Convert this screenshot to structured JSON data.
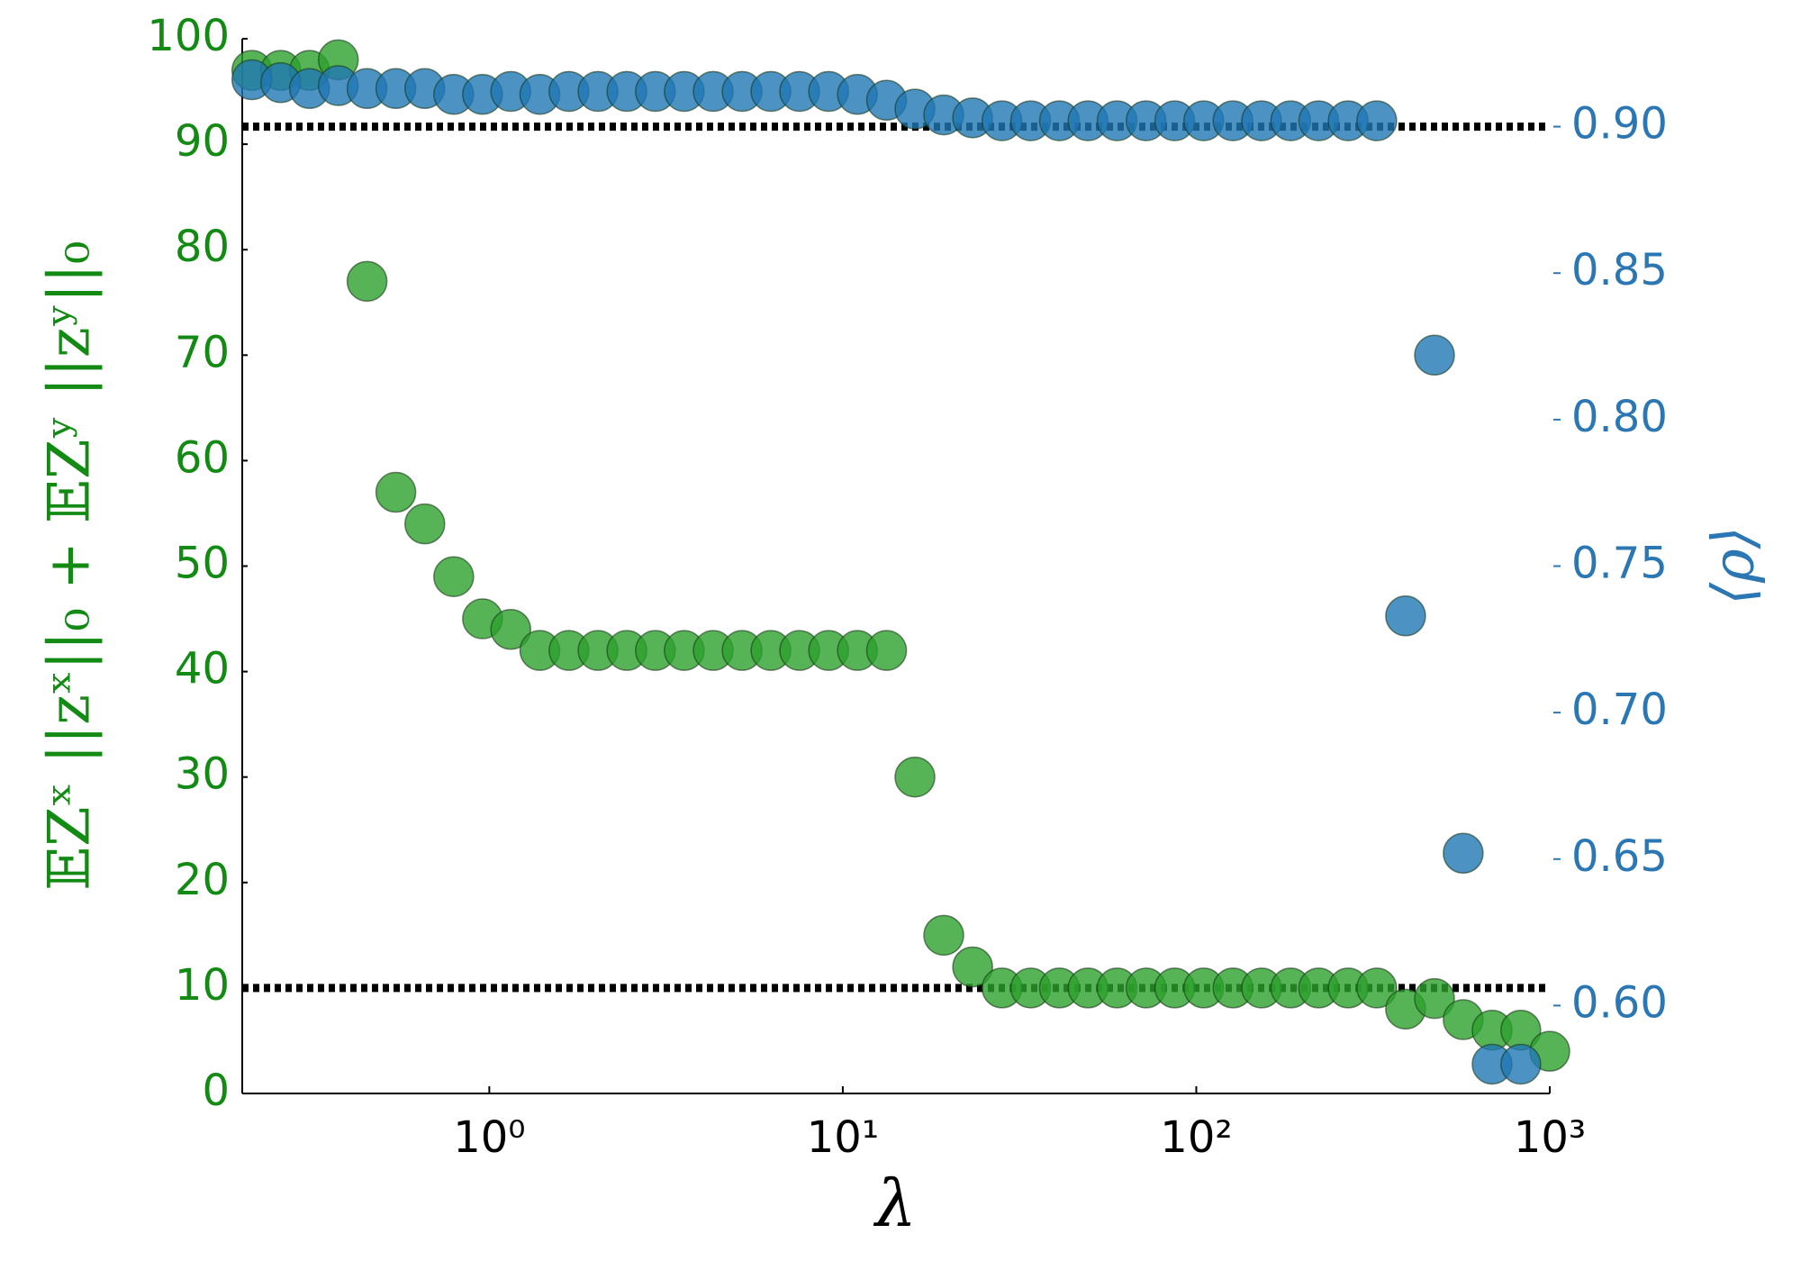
{
  "chart_data": {
    "type": "scatter",
    "xlabel": "λ",
    "ylabel": "𝔼Zˣ ||zˣ||₀ + 𝔼Zʸ ||zʸ||₀",
    "y2label": "⟨ρ⟩",
    "xscale": "log",
    "xlim": [
      0.2,
      1000
    ],
    "xticks": [
      {
        "value": 1,
        "label": "10⁰"
      },
      {
        "value": 10,
        "label": "10¹"
      },
      {
        "value": 100,
        "label": "10²"
      },
      {
        "value": 1000,
        "label": "10³"
      }
    ],
    "ylim": [
      0,
      100
    ],
    "yticks": [
      0,
      10,
      20,
      30,
      40,
      50,
      60,
      70,
      80,
      90,
      100
    ],
    "y2lim": [
      0.57,
      0.93
    ],
    "y2ticks": [
      {
        "value": 0.6,
        "label": "0.60"
      },
      0.65,
      {
        "value": 0.7,
        "label": "0.70"
      },
      0.75,
      {
        "value": 0.8,
        "label": "0.80"
      },
      0.85,
      {
        "value": 0.9,
        "label": "0.90"
      }
    ],
    "reference_lines": [
      {
        "axis": "y",
        "value": 10
      },
      {
        "axis": "y2",
        "value": 0.9
      }
    ],
    "x": [
      0.213,
      0.257,
      0.31,
      0.374,
      0.451,
      0.544,
      0.657,
      0.793,
      0.957,
      1.15,
      1.39,
      1.68,
      2.03,
      2.45,
      2.95,
      3.56,
      4.3,
      5.19,
      6.26,
      7.55,
      9.12,
      11.0,
      13.3,
      16.0,
      19.3,
      23.3,
      28.2,
      34.0,
      41.0,
      49.4,
      59.7,
      72.1,
      86.9,
      105,
      127,
      153,
      185,
      222,
      269,
      324,
      391,
      472,
      569,
      687,
      828,
      1000
    ],
    "series": [
      {
        "color": "#2ca02c",
        "axis": "y",
        "values": [
          97,
          97,
          97,
          98,
          77,
          57,
          54,
          49,
          45,
          44,
          42,
          42,
          42,
          42,
          42,
          42,
          42,
          42,
          42,
          42,
          42,
          42,
          42,
          30,
          15,
          12,
          10,
          10,
          10,
          10,
          10,
          10,
          10,
          10,
          10,
          10,
          10,
          10,
          10,
          10,
          8,
          9,
          7,
          6,
          6,
          4
        ]
      },
      {
        "color": "#1f77b4",
        "axis": "y2",
        "values": [
          0.916,
          0.915,
          0.913,
          0.914,
          0.913,
          0.913,
          0.913,
          0.911,
          0.911,
          0.912,
          0.911,
          0.912,
          0.912,
          0.912,
          0.912,
          0.912,
          0.912,
          0.912,
          0.912,
          0.912,
          0.912,
          0.911,
          0.909,
          0.906,
          0.904,
          0.903,
          0.902,
          0.902,
          0.902,
          0.902,
          0.902,
          0.902,
          0.902,
          0.902,
          0.902,
          0.902,
          0.902,
          0.902,
          0.902,
          0.902,
          0.733,
          0.822,
          0.652,
          0.58,
          0.58,
          null
        ]
      }
    ]
  }
}
